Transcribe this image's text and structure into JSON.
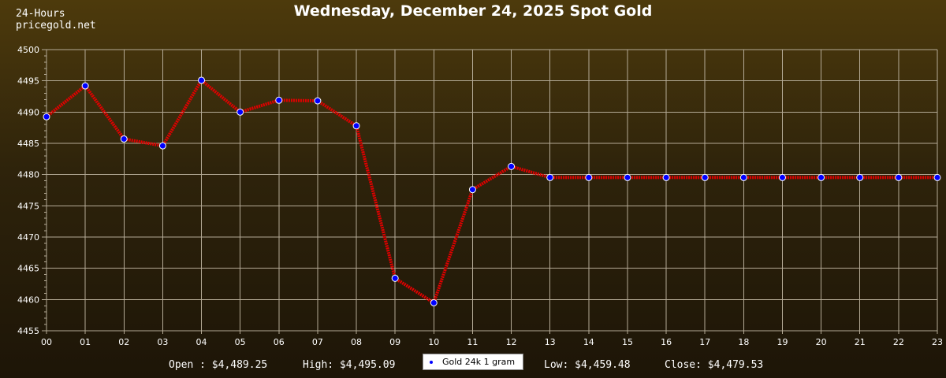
{
  "header": {
    "period_line": "24-Hours",
    "site_line": "pricegold.net"
  },
  "footer": {
    "open_text": "Open : $4,489.25",
    "high_text": "High: $4,495.09",
    "low_text": "Low: $4,459.48",
    "close_text": "Close: $4,479.53"
  },
  "colors": {
    "line": "#e00000",
    "marker": "#0000ff",
    "grid": "#b4aa96",
    "axis_text": "#ffffff"
  },
  "chart_data": {
    "type": "line",
    "title": "Wednesday, December 24, 2025 Spot Gold",
    "xlabel": "",
    "ylabel": "",
    "categories": [
      "00",
      "01",
      "02",
      "03",
      "04",
      "05",
      "06",
      "07",
      "08",
      "09",
      "10",
      "11",
      "12",
      "13",
      "14",
      "15",
      "16",
      "17",
      "18",
      "19",
      "20",
      "21",
      "22",
      "23"
    ],
    "yticks": [
      4455,
      4460,
      4465,
      4470,
      4475,
      4480,
      4485,
      4490,
      4495,
      4500
    ],
    "ylim": [
      4455,
      4500
    ],
    "grid": true,
    "legend_position": "bottom-center",
    "series": [
      {
        "name": "Gold 24k 1 gram",
        "values": [
          4489.25,
          4494.2,
          4485.7,
          4484.6,
          4495.09,
          4490.0,
          4491.9,
          4491.8,
          4487.8,
          4463.4,
          4459.48,
          4477.6,
          4481.3,
          4479.53,
          4479.53,
          4479.53,
          4479.53,
          4479.53,
          4479.53,
          4479.53,
          4479.53,
          4479.53,
          4479.53,
          4479.53
        ]
      }
    ]
  }
}
